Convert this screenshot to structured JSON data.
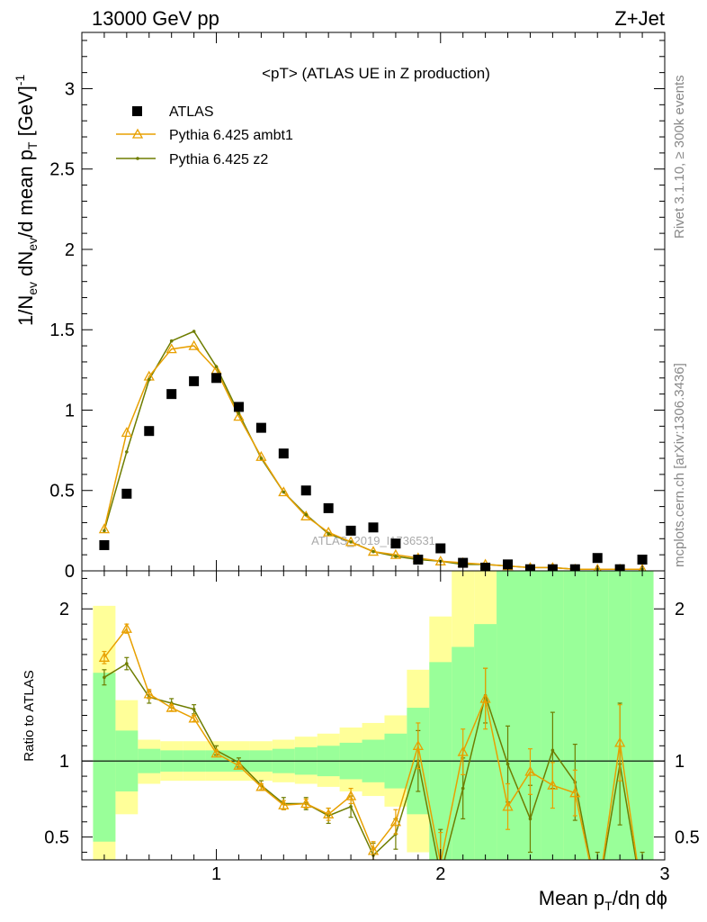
{
  "header": {
    "left": "13000 GeV pp",
    "right": "Z+Jet"
  },
  "side_text": {
    "rivet": "Rivet 3.1.10, ≥ 300k events",
    "mcplots": "mcplots.cern.ch [arXiv:1306.3436]"
  },
  "chart_data": [
    {
      "type": "scatter",
      "panel": "main",
      "title": "<pT> (ATLAS UE in Z production)",
      "watermark": "ATLAS_2019_I1736531",
      "xlabel": "Mean p_T/dη dϕ",
      "ylabel": "1/N_ev dN_ev/d mean p_T [GeV]^-1",
      "xlim": [
        0.4,
        3.0
      ],
      "ylim": [
        0,
        3.35
      ],
      "x_ticks": [
        1,
        2,
        3
      ],
      "y_ticks": [
        0.5,
        1,
        1.5,
        2,
        2.5,
        3
      ],
      "y_tick_labels": [
        "0.5",
        "1",
        "1.5",
        "2",
        "2.5",
        "3"
      ],
      "legend_position": "top-left",
      "x": [
        0.5,
        0.6,
        0.7,
        0.8,
        0.9,
        1.0,
        1.1,
        1.2,
        1.3,
        1.4,
        1.5,
        1.6,
        1.7,
        1.8,
        1.9,
        2.0,
        2.1,
        2.2,
        2.3,
        2.4,
        2.5,
        2.6,
        2.7,
        2.8,
        2.9
      ],
      "series": [
        {
          "name": "ATLAS",
          "color": "#000000",
          "marker": "square",
          "values": [
            0.16,
            0.48,
            0.87,
            1.1,
            1.18,
            1.2,
            1.02,
            0.89,
            0.73,
            0.5,
            0.39,
            0.25,
            0.27,
            0.17,
            0.07,
            0.14,
            0.05,
            0.02,
            0.04,
            0.01,
            0.01,
            0.01,
            0.08,
            0.01,
            0.07
          ]
        },
        {
          "name": "Pythia 6.425 ambt1",
          "color": "#e8a000",
          "marker": "triangle",
          "values": [
            0.26,
            0.86,
            1.21,
            1.38,
            1.4,
            1.25,
            0.96,
            0.71,
            0.49,
            0.34,
            0.24,
            0.18,
            0.12,
            0.1,
            0.08,
            0.06,
            0.05,
            0.04,
            0.03,
            0.02,
            0.02,
            0.01,
            0.01,
            0.01,
            0.01
          ]
        },
        {
          "name": "Pythia 6.425 z2",
          "color": "#6e7d00",
          "marker": "dot",
          "values": [
            0.25,
            0.74,
            1.19,
            1.43,
            1.49,
            1.27,
            0.98,
            0.7,
            0.49,
            0.35,
            0.23,
            0.18,
            0.12,
            0.09,
            0.07,
            0.06,
            0.04,
            0.04,
            0.03,
            0.02,
            0.02,
            0.01,
            0.01,
            0.01,
            0.01
          ]
        }
      ]
    },
    {
      "type": "line",
      "panel": "ratio",
      "ylabel": "Ratio to ATLAS",
      "xlim": [
        0.4,
        3.0
      ],
      "ylim": [
        0.35,
        2.25
      ],
      "y_ticks": [
        0.5,
        1,
        2
      ],
      "y_tick_labels": [
        "0.5",
        "1",
        "2"
      ],
      "x_ticks": [
        1,
        2,
        3
      ],
      "x_tick_labels": [
        "1",
        "2",
        "3"
      ],
      "x": [
        0.5,
        0.6,
        0.7,
        0.8,
        0.9,
        1.0,
        1.1,
        1.2,
        1.3,
        1.4,
        1.5,
        1.6,
        1.7,
        1.8,
        1.9,
        2.0,
        2.1,
        2.2,
        2.3,
        2.4,
        2.5,
        2.6,
        2.7,
        2.8,
        2.9
      ],
      "band_inner": {
        "color": "#99ff99",
        "low": [
          0.47,
          0.8,
          0.92,
          0.93,
          0.93,
          0.93,
          0.93,
          0.93,
          0.92,
          0.91,
          0.9,
          0.88,
          0.86,
          0.82,
          0.65,
          0.35,
          0.3,
          0.3,
          0.3,
          0.3,
          0.3,
          0.3,
          0.3,
          0.3,
          0.3
        ],
        "high": [
          1.58,
          1.2,
          1.08,
          1.07,
          1.07,
          1.07,
          1.07,
          1.07,
          1.08,
          1.09,
          1.1,
          1.12,
          1.14,
          1.18,
          1.35,
          1.65,
          1.75,
          1.9,
          2.4,
          2.4,
          2.4,
          2.4,
          2.4,
          2.4,
          2.4
        ]
      },
      "band_outer": {
        "color": "#ffff99",
        "low": [
          0.3,
          0.65,
          0.85,
          0.87,
          0.87,
          0.87,
          0.87,
          0.87,
          0.86,
          0.85,
          0.83,
          0.8,
          0.77,
          0.7,
          0.4,
          0.3,
          0.3,
          0.3,
          0.3,
          0.3,
          0.3,
          0.3,
          0.3,
          0.3,
          0.3
        ],
        "high": [
          2.02,
          1.4,
          1.14,
          1.13,
          1.13,
          1.13,
          1.13,
          1.13,
          1.14,
          1.16,
          1.18,
          1.22,
          1.25,
          1.3,
          1.6,
          1.95,
          2.4,
          2.4,
          2.4,
          2.4,
          2.4,
          2.4,
          2.4,
          2.4,
          2.4
        ]
      },
      "series": [
        {
          "name": "Pythia 6.425 ambt1",
          "color": "#e8a000",
          "values": [
            1.68,
            1.87,
            1.44,
            1.35,
            1.28,
            1.05,
            0.97,
            0.83,
            0.71,
            0.72,
            0.65,
            0.77,
            0.41,
            0.6,
            1.1,
            0.33,
            1.06,
            1.41,
            0.7,
            0.93,
            0.84,
            0.79,
            0.1,
            1.12,
            0.1
          ],
          "errors": [
            0.04,
            0.03,
            0.03,
            0.02,
            0.02,
            0.02,
            0.02,
            0.02,
            0.03,
            0.03,
            0.04,
            0.05,
            0.06,
            0.08,
            0.15,
            0.2,
            0.15,
            0.2,
            0.15,
            0.15,
            0.15,
            0.15,
            0.2,
            0.25,
            0.2
          ]
        },
        {
          "name": "Pythia 6.425 z2",
          "color": "#6e7d00",
          "values": [
            1.55,
            1.64,
            1.42,
            1.38,
            1.34,
            1.07,
            0.99,
            0.84,
            0.72,
            0.72,
            0.64,
            0.7,
            0.38,
            0.52,
            1.0,
            0.25,
            0.82,
            1.43,
            0.98,
            0.62,
            1.07,
            0.86,
            0.1,
            0.98,
            0.1
          ],
          "errors": [
            0.05,
            0.04,
            0.04,
            0.03,
            0.03,
            0.03,
            0.03,
            0.03,
            0.04,
            0.04,
            0.05,
            0.07,
            0.08,
            0.1,
            0.2,
            0.3,
            0.2,
            0.18,
            0.25,
            0.22,
            0.25,
            0.25,
            0.3,
            0.4,
            0.3
          ]
        }
      ]
    }
  ]
}
